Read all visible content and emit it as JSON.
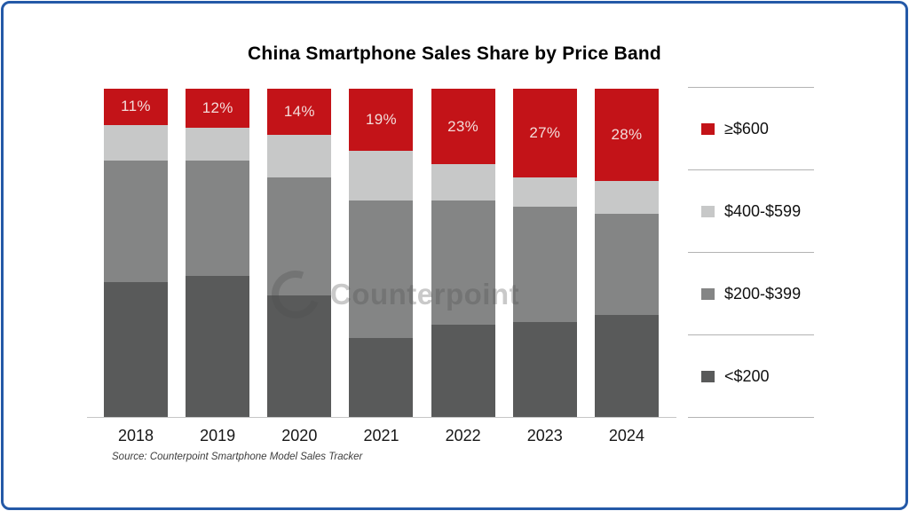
{
  "title": "China Smartphone Sales Share by Price Band",
  "source_note": "Source: Counterpoint Smartphone Model Sales Tracker",
  "watermark": {
    "text": "Counterpoint",
    "logo": "c-ring-logo"
  },
  "frame": {
    "border_color": "#2459A7"
  },
  "chart_data": {
    "type": "bar",
    "stacked": true,
    "unit": "%",
    "title": "China Smartphone Sales Share by Price Band",
    "categories": [
      "2018",
      "2019",
      "2020",
      "2021",
      "2022",
      "2023",
      "2024"
    ],
    "series": [
      {
        "name": "<$200",
        "color": "#595A5A",
        "values": [
          41,
          43,
          37,
          24,
          28,
          29,
          31
        ]
      },
      {
        "name": "$200-$399",
        "color": "#848585",
        "values": [
          37,
          35,
          36,
          42,
          38,
          35,
          31
        ]
      },
      {
        "name": "$400-$599",
        "color": "#C7C8C8",
        "values": [
          11,
          10,
          13,
          15,
          11,
          9,
          10
        ]
      },
      {
        "name": "≥$600",
        "color": "#C31318",
        "values": [
          11,
          12,
          14,
          19,
          23,
          27,
          28
        ],
        "data_labels": [
          "11%",
          "12%",
          "14%",
          "19%",
          "23%",
          "27%",
          "28%"
        ],
        "label_color": "#F3DCDA"
      }
    ],
    "ylim": [
      0,
      100
    ],
    "grid": false,
    "legend_position": "right",
    "legend_order": [
      "≥$600",
      "$400-$599",
      "$200-$399",
      "<$200"
    ],
    "value_labels_shown_for": "≥$600"
  }
}
